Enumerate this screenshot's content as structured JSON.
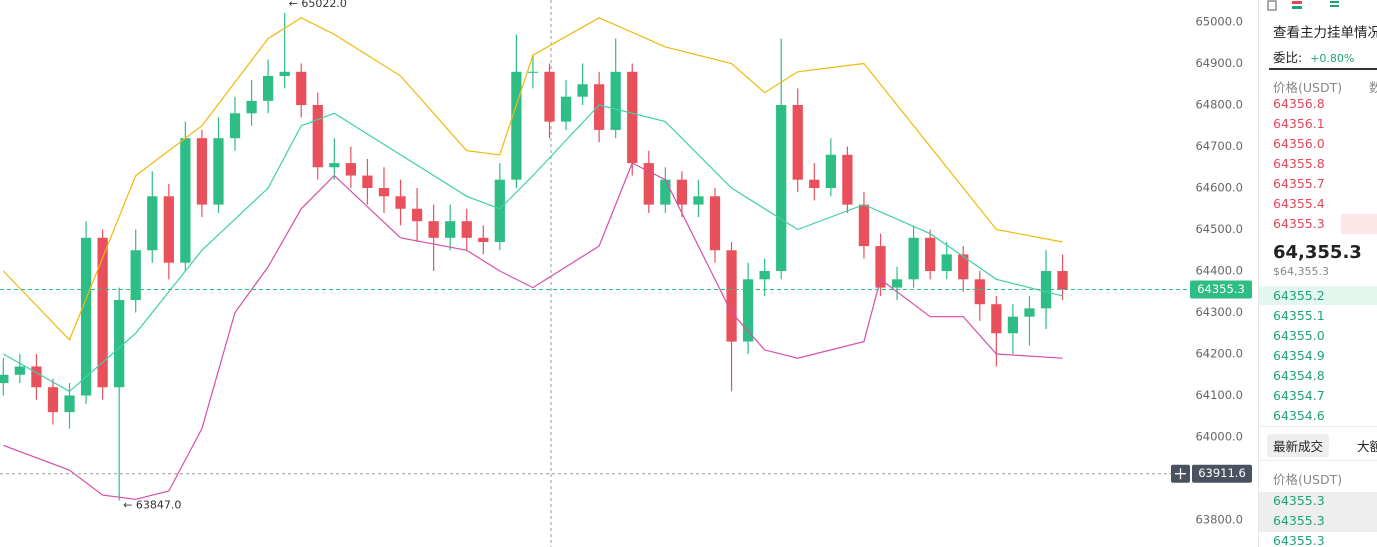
{
  "chart_data": {
    "type": "candlestick",
    "xlim": [
      -0.2,
      71.7
    ],
    "ylim": [
      63735,
      65053
    ],
    "yticks": [
      {
        "value": 63800,
        "label": "63800.0"
      },
      {
        "value": 63900,
        "label": "63900.0"
      },
      {
        "value": 64000,
        "label": "64000.0"
      },
      {
        "value": 64100,
        "label": "64100.0"
      },
      {
        "value": 64200,
        "label": "64200.0"
      },
      {
        "value": 64300,
        "label": "64300.0"
      },
      {
        "value": 64400,
        "label": "64400.0"
      },
      {
        "value": 64500,
        "label": "64500.0"
      },
      {
        "value": 64600,
        "label": "64600.0"
      },
      {
        "value": 64700,
        "label": "64700.0"
      },
      {
        "value": 64800,
        "label": "64800.0"
      },
      {
        "value": 64900,
        "label": "64900.0"
      },
      {
        "value": 65000,
        "label": "65000.0"
      }
    ],
    "up_color": "#2ebd85",
    "down_color": "#e8505b",
    "open": [
      64130,
      64150,
      64170,
      64120,
      64060,
      64100,
      64480,
      64120,
      64330,
      64450,
      64580,
      64420,
      64720,
      64560,
      64720,
      64780,
      64810,
      64870,
      64880,
      64800,
      64650,
      64660,
      64630,
      64600,
      64580,
      64550,
      64520,
      64480,
      64520,
      64480,
      64470,
      64620,
      64880,
      64880,
      64760,
      64820,
      64850,
      64740,
      64880,
      64660,
      64560,
      64620,
      64560,
      64580,
      64450,
      64230,
      64380,
      64400,
      64800,
      64620,
      64600,
      64680,
      64560,
      64460,
      64360,
      64380,
      64480,
      64400,
      64440,
      64380,
      64320,
      64250,
      64290,
      64310,
      64400
    ],
    "high": [
      64190,
      64200,
      64200,
      64140,
      64130,
      64520,
      64500,
      64360,
      64500,
      64640,
      64610,
      64760,
      64740,
      64770,
      64820,
      64860,
      64910,
      65022,
      64900,
      64830,
      64720,
      64700,
      64670,
      64650,
      64620,
      64600,
      64560,
      64560,
      64550,
      64510,
      64660,
      64970,
      64920,
      64900,
      64860,
      64900,
      64880,
      64960,
      64900,
      64690,
      64650,
      64640,
      64620,
      64600,
      64470,
      64420,
      64430,
      64960,
      64840,
      64660,
      64720,
      64700,
      64590,
      64490,
      64410,
      64510,
      64500,
      64470,
      64460,
      64400,
      64340,
      64320,
      64340,
      64450,
      64440
    ],
    "low": [
      64100,
      64130,
      64090,
      64030,
      64020,
      64080,
      64090,
      63847,
      64300,
      64420,
      64380,
      64400,
      64530,
      64540,
      64690,
      64750,
      64780,
      64840,
      64770,
      64620,
      64620,
      64600,
      64560,
      64540,
      64510,
      64470,
      64400,
      64450,
      64450,
      64440,
      64450,
      64600,
      64840,
      64720,
      64740,
      64800,
      64710,
      64720,
      64630,
      64540,
      64540,
      64530,
      64530,
      64420,
      64110,
      64200,
      64340,
      64380,
      64590,
      64570,
      64580,
      64540,
      64430,
      64340,
      64330,
      64360,
      64380,
      64380,
      64350,
      64280,
      64170,
      64200,
      64220,
      64260,
      64330
    ],
    "close": [
      64150,
      64170,
      64120,
      64060,
      64100,
      64480,
      64120,
      64330,
      64450,
      64580,
      64420,
      64720,
      64560,
      64720,
      64780,
      64810,
      64870,
      64880,
      64800,
      64650,
      64660,
      64630,
      64600,
      64580,
      64550,
      64520,
      64480,
      64520,
      64480,
      64470,
      64620,
      64880,
      64880,
      64760,
      64820,
      64850,
      64740,
      64880,
      64660,
      64560,
      64620,
      64560,
      64580,
      64450,
      64230,
      64380,
      64400,
      64800,
      64620,
      64600,
      64680,
      64560,
      64460,
      64360,
      64380,
      64480,
      64400,
      64440,
      64380,
      64320,
      64250,
      64290,
      64310,
      64400,
      64355.3
    ],
    "series": [
      {
        "name": "UP",
        "color": "#f0b90b",
        "x": [
          0,
          4,
          8,
          12,
          16,
          18,
          20,
          24,
          28,
          30,
          32,
          36,
          40,
          44,
          46,
          48,
          52,
          56,
          60,
          64
        ],
        "values": [
          64400,
          64234,
          64630,
          64750,
          64960,
          65010,
          64970,
          64870,
          64690,
          64680,
          64920,
          65010,
          64940,
          64900,
          64830,
          64880,
          64900,
          64700,
          64500,
          64470
        ]
      },
      {
        "name": "MB",
        "color": "#3fd0a8",
        "x": [
          0,
          4,
          8,
          12,
          16,
          18,
          20,
          24,
          28,
          30,
          32,
          36,
          40,
          44,
          48,
          52,
          56,
          60,
          64
        ],
        "values": [
          64200,
          64110,
          64250,
          64450,
          64600,
          64750,
          64780,
          64680,
          64580,
          64550,
          64630,
          64800,
          64760,
          64600,
          64500,
          64560,
          64490,
          64380,
          64340
        ]
      },
      {
        "name": "DN",
        "color": "#d64fa5",
        "x": [
          0,
          4,
          6,
          8,
          10,
          12,
          14,
          16,
          18,
          20,
          24,
          28,
          30,
          32,
          36,
          38,
          40,
          44,
          46,
          48,
          52,
          53,
          56,
          58,
          60,
          64
        ],
        "values": [
          63980,
          63920,
          63860,
          63850,
          63870,
          64020,
          64300,
          64410,
          64550,
          64630,
          64480,
          64450,
          64400,
          64360,
          64460,
          64660,
          64620,
          64300,
          64210,
          64190,
          64230,
          64380,
          64290,
          64290,
          64200,
          64190
        ]
      }
    ],
    "high_label": "← 65022.0",
    "low_label": "← 63847.0",
    "last_price": 64355.3,
    "crosshair_price": 63911.6,
    "grid": false
  },
  "sidebar": {
    "promo": "查看主力挂单情况",
    "ratio_label": "委比:",
    "ratio_value": "+0.80%",
    "book_header": [
      "价格(USDT)",
      "数"
    ],
    "asks": [
      "64356.8",
      "64356.1",
      "64356.0",
      "64355.8",
      "64355.7",
      "64355.4",
      "64355.3"
    ],
    "mid_price": "64,355.3",
    "mid_fiat": "$64,355.3",
    "bids": [
      "64355.2",
      "64355.1",
      "64355.0",
      "64354.9",
      "64354.8",
      "64354.7",
      "64354.6"
    ],
    "tabs": [
      "最新成交",
      "大额"
    ],
    "trades_header": "价格(USDT)",
    "trades": [
      "64355.3",
      "64355.3",
      "64355.3"
    ]
  }
}
